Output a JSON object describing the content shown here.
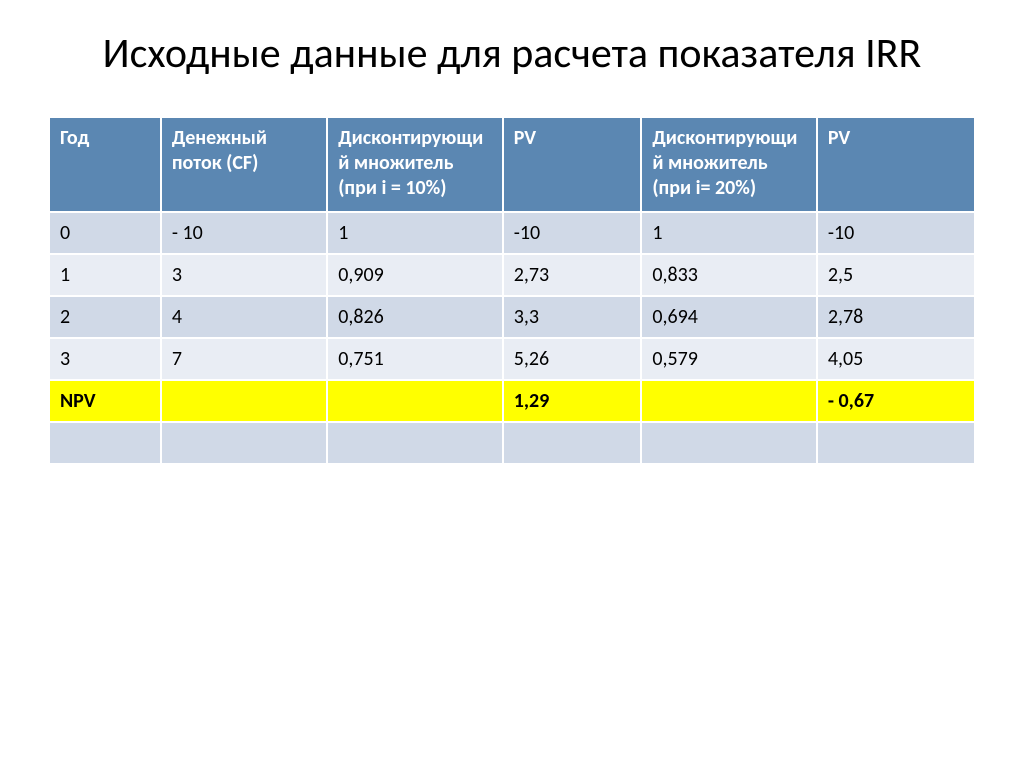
{
  "title": "Исходные данные для расчета показателя IRR",
  "table": {
    "header_bg": "#5b87b2",
    "header_fg": "#ffffff",
    "row_bg_odd": "#d0d9e7",
    "row_bg_even": "#e9edf4",
    "npv_bg": "#ffff00",
    "empty_bg": "#d0d9e7",
    "col_widths": [
      "12%",
      "18%",
      "19%",
      "15%",
      "19%",
      "17%"
    ],
    "columns": [
      "Год",
      "Денежный поток (CF)",
      "Дисконтирующий множитель (при i = 10%)",
      "PV",
      "Дисконтирующий множитель (при i= 20%)",
      "PV"
    ],
    "rows": [
      [
        "0",
        "-   10",
        "1",
        "-10",
        "1",
        "-10"
      ],
      [
        "1",
        "3",
        "0,909",
        "2,73",
        "0,833",
        "2,5"
      ],
      [
        "2",
        "4",
        "0,826",
        "3,3",
        "0,694",
        "2,78"
      ],
      [
        "3",
        "7",
        "0,751",
        "5,26",
        "0,579",
        "4,05"
      ]
    ],
    "npv_row": [
      "NPV",
      "",
      "",
      "1,29",
      "",
      "- 0,67"
    ],
    "empty_row": [
      "",
      "",
      "",
      "",
      "",
      ""
    ]
  }
}
